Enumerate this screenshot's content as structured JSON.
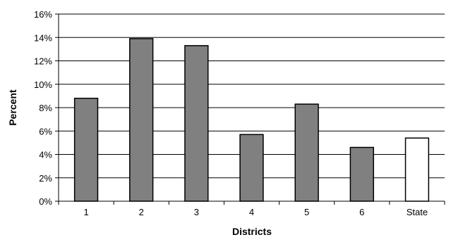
{
  "chart_data": {
    "type": "bar",
    "categories": [
      "1",
      "2",
      "3",
      "4",
      "5",
      "6",
      "State"
    ],
    "values": [
      8.8,
      13.9,
      13.3,
      5.7,
      8.3,
      4.6,
      5.4
    ],
    "title": "",
    "xlabel": "Districts",
    "ylabel": "Percent",
    "ylim": [
      0,
      16
    ],
    "y_ticks": [
      0,
      2,
      4,
      6,
      8,
      10,
      12,
      14,
      16
    ],
    "y_tick_format": "percent",
    "grid": true,
    "legend": "none",
    "colors": {
      "bar_fill": "#808080",
      "highlight_fill": "#ffffff",
      "bar_stroke": "#000000",
      "gridline": "#000000"
    },
    "highlight_category": "State"
  }
}
